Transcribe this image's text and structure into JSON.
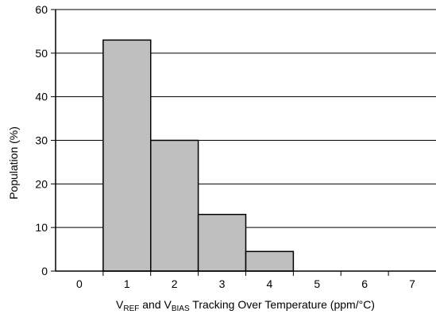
{
  "chart_data": {
    "type": "bar",
    "categories": [
      "0",
      "1",
      "2",
      "3",
      "4",
      "5",
      "6",
      "7"
    ],
    "values": [
      0,
      53,
      30,
      13,
      4.5,
      0,
      0,
      0
    ],
    "title": "",
    "xlabel": {
      "parts": [
        {
          "text": "V",
          "sub": false
        },
        {
          "text": "REF",
          "sub": true
        },
        {
          "text": " and V",
          "sub": false
        },
        {
          "text": "BIAS",
          "sub": true
        },
        {
          "text": " Tracking Over Temperature (ppm/°C)",
          "sub": false
        }
      ]
    },
    "ylabel": "Population (%)",
    "ylim": [
      0,
      60
    ],
    "yticks": [
      "0",
      "10",
      "20",
      "30",
      "40",
      "50",
      "60"
    ],
    "grid": true,
    "bar_color": "#bfbfbf",
    "bar_edge_color": "#000000"
  }
}
